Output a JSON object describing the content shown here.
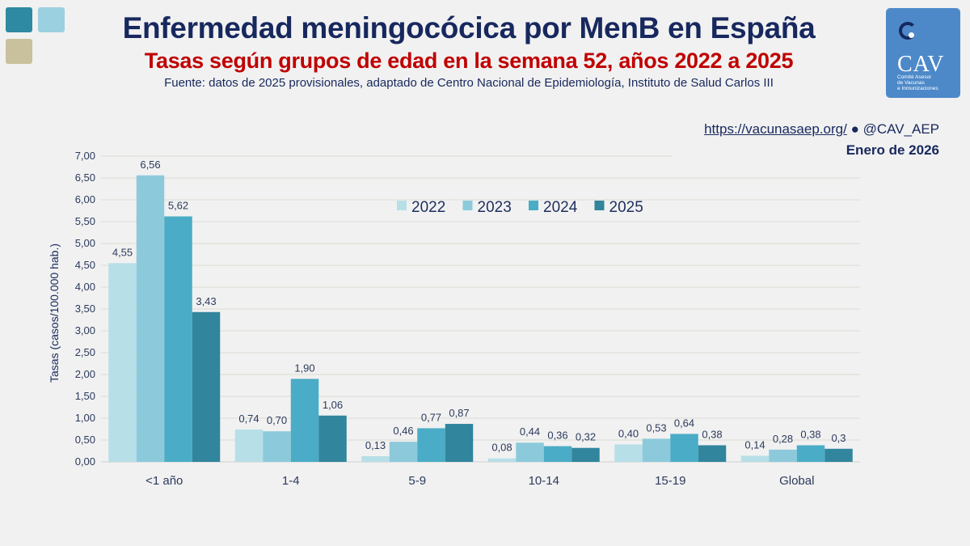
{
  "header": {
    "title": "Enfermedad meningocócica por MenB en España",
    "subtitle": "Tasas según grupos de edad en la semana 52, años 2022 a 2025",
    "source": "Fuente: datos de 2025 provisionales, adaptado de Centro Nacional de Epidemiología, Instituto de Salud Carlos III"
  },
  "logo": {
    "name": "CAV",
    "subtitle_lines": [
      "Comité Asesor",
      "de Vacunas",
      "e Inmunizaciones"
    ]
  },
  "footer_info": {
    "url": "https://vacunasaep.org/",
    "separator": "●",
    "handle": "@CAV_AEP",
    "date": "Enero de 2026"
  },
  "colors": {
    "title": "#17285e",
    "subtitle": "#c00000",
    "2022": "#b7dfe8",
    "2023": "#8ccadb",
    "2024": "#4aacc6",
    "2025": "#31859c"
  },
  "chart_data": {
    "type": "bar",
    "title": "Enfermedad meningocócica por MenB en España",
    "xlabel": "",
    "ylabel": "Tasas (casos/100.000 hab.)",
    "ylim": [
      0,
      7
    ],
    "ytick_step": 0.5,
    "yticks": [
      "0,00",
      "0,50",
      "1,00",
      "1,50",
      "2,00",
      "2,50",
      "3,00",
      "3,50",
      "4,00",
      "4,50",
      "5,00",
      "5,50",
      "6,00",
      "6,50",
      "7,00"
    ],
    "grid": true,
    "legend_position": "top-center",
    "categories": [
      "<1 año",
      "1-4",
      "5-9",
      "10-14",
      "15-19",
      "Global"
    ],
    "series": [
      {
        "name": "2022",
        "values": [
          4.55,
          0.74,
          0.13,
          0.08,
          0.4,
          0.14
        ],
        "labels": [
          "4,55",
          "0,74",
          "0,13",
          "0,08",
          "0,40",
          "0,14"
        ]
      },
      {
        "name": "2023",
        "values": [
          6.56,
          0.7,
          0.46,
          0.44,
          0.53,
          0.28
        ],
        "labels": [
          "6,56",
          "0,70",
          "0,46",
          "0,44",
          "0,53",
          "0,28"
        ]
      },
      {
        "name": "2024",
        "values": [
          5.62,
          1.9,
          0.77,
          0.36,
          0.64,
          0.38
        ],
        "labels": [
          "5,62",
          "1,90",
          "0,77",
          "0,36",
          "0,64",
          "0,38"
        ]
      },
      {
        "name": "2025",
        "values": [
          3.43,
          1.06,
          0.87,
          0.32,
          0.38,
          0.3
        ],
        "labels": [
          "3,43",
          "1,06",
          "0,87",
          "0,32",
          "0,38",
          "0,3"
        ]
      }
    ]
  }
}
